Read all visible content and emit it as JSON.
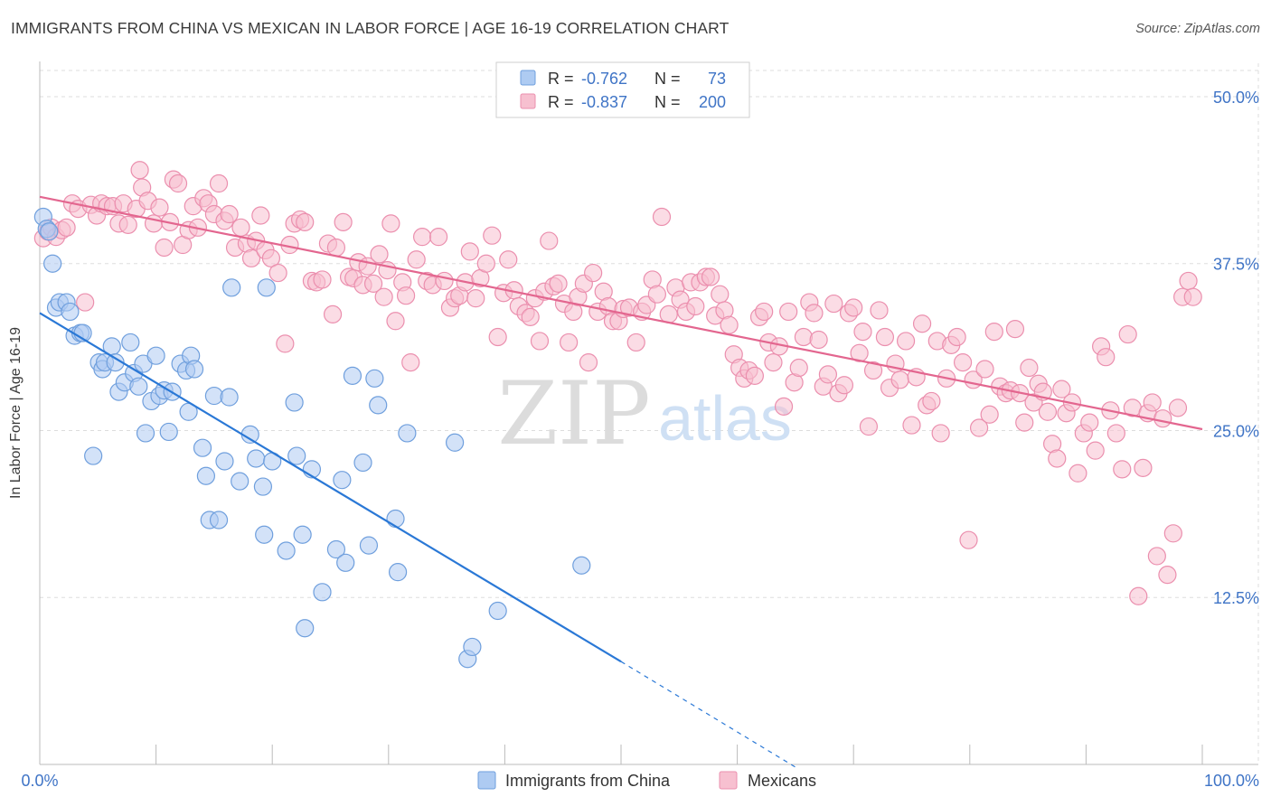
{
  "title": "IMMIGRANTS FROM CHINA VS MEXICAN IN LABOR FORCE | AGE 16-19 CORRELATION CHART",
  "source": "Source: ZipAtlas.com",
  "watermark": {
    "zip": "ZIP",
    "atlas": "atlas"
  },
  "colors": {
    "china_fill": "#aecbf2",
    "china_stroke": "#6f9fdd",
    "china_line": "#2a78d6",
    "mex_fill": "#f7c0d0",
    "mex_stroke": "#eb8fae",
    "mex_line": "#e3668f",
    "tick_text": "#3f74c6",
    "grid": "#dddddd"
  },
  "legend": {
    "r_label": "R =",
    "n_label": "N =",
    "rows": [
      {
        "r": "-0.762",
        "n": "73"
      },
      {
        "r": "-0.837",
        "n": "200"
      }
    ]
  },
  "chart_data": {
    "type": "scatter",
    "xlabel": "",
    "ylabel": "In Labor Force | Age 16-19",
    "xlim": [
      0,
      100
    ],
    "ylim": [
      0,
      52.5
    ],
    "x_tick_labels": [
      "0.0%",
      "100.0%"
    ],
    "y_ticks": [
      12.5,
      25.0,
      37.5,
      50.0
    ],
    "y_tick_labels": [
      "12.5%",
      "25.0%",
      "37.5%",
      "50.0%"
    ],
    "grid": true,
    "legend_position": "top-center",
    "series": [
      {
        "name": "Immigrants from China",
        "trend": {
          "x": [
            0,
            50
          ],
          "y": [
            33.8,
            7.7
          ],
          "dashed_to": [
            65,
            -0.2
          ]
        },
        "points": [
          [
            0.3,
            41.0
          ],
          [
            0.6,
            40.1
          ],
          [
            0.8,
            39.9
          ],
          [
            1.1,
            37.5
          ],
          [
            1.4,
            34.2
          ],
          [
            1.7,
            34.6
          ],
          [
            2.3,
            34.6
          ],
          [
            2.6,
            33.9
          ],
          [
            3.0,
            32.1
          ],
          [
            3.5,
            32.3
          ],
          [
            3.7,
            32.3
          ],
          [
            4.6,
            23.1
          ],
          [
            5.1,
            30.1
          ],
          [
            5.4,
            29.6
          ],
          [
            5.6,
            30.1
          ],
          [
            6.2,
            31.3
          ],
          [
            6.5,
            30.1
          ],
          [
            6.8,
            27.9
          ],
          [
            7.3,
            28.6
          ],
          [
            7.8,
            31.6
          ],
          [
            8.1,
            29.3
          ],
          [
            8.5,
            28.3
          ],
          [
            8.9,
            30.0
          ],
          [
            9.1,
            24.8
          ],
          [
            9.6,
            27.2
          ],
          [
            10.0,
            30.6
          ],
          [
            10.3,
            27.6
          ],
          [
            10.7,
            28.0
          ],
          [
            11.1,
            24.9
          ],
          [
            11.4,
            27.9
          ],
          [
            12.1,
            30.0
          ],
          [
            12.6,
            29.5
          ],
          [
            12.8,
            26.4
          ],
          [
            13.0,
            30.6
          ],
          [
            13.3,
            29.6
          ],
          [
            14.0,
            23.7
          ],
          [
            14.3,
            21.6
          ],
          [
            14.6,
            18.3
          ],
          [
            15.0,
            27.6
          ],
          [
            15.4,
            18.3
          ],
          [
            15.9,
            22.7
          ],
          [
            16.3,
            27.5
          ],
          [
            16.5,
            35.7
          ],
          [
            17.2,
            21.2
          ],
          [
            18.1,
            24.7
          ],
          [
            18.6,
            22.9
          ],
          [
            19.2,
            20.8
          ],
          [
            19.3,
            17.2
          ],
          [
            19.5,
            35.7
          ],
          [
            20.0,
            22.7
          ],
          [
            21.2,
            16.0
          ],
          [
            21.9,
            27.1
          ],
          [
            22.1,
            23.1
          ],
          [
            22.6,
            17.2
          ],
          [
            22.8,
            10.2
          ],
          [
            23.4,
            22.1
          ],
          [
            24.3,
            12.9
          ],
          [
            25.5,
            16.1
          ],
          [
            26.0,
            21.3
          ],
          [
            26.3,
            15.1
          ],
          [
            26.9,
            29.1
          ],
          [
            27.8,
            22.6
          ],
          [
            28.3,
            16.4
          ],
          [
            28.8,
            28.9
          ],
          [
            29.1,
            26.9
          ],
          [
            30.6,
            18.4
          ],
          [
            30.8,
            14.4
          ],
          [
            31.6,
            24.8
          ],
          [
            35.7,
            24.1
          ],
          [
            36.8,
            7.9
          ],
          [
            37.2,
            8.8
          ],
          [
            39.4,
            11.5
          ],
          [
            46.6,
            14.9
          ]
        ]
      },
      {
        "name": "Mexicans",
        "trend": {
          "x": [
            0,
            100
          ],
          "y": [
            42.5,
            25.1
          ]
        },
        "points": [
          [
            0.3,
            39.4
          ],
          [
            0.7,
            39.9
          ],
          [
            1.0,
            40.2
          ],
          [
            1.4,
            39.5
          ],
          [
            1.9,
            40.0
          ],
          [
            2.3,
            40.2
          ],
          [
            2.8,
            42.0
          ],
          [
            3.3,
            41.6
          ],
          [
            3.9,
            34.6
          ],
          [
            4.4,
            41.9
          ],
          [
            4.9,
            41.1
          ],
          [
            5.3,
            42.0
          ],
          [
            5.8,
            41.8
          ],
          [
            6.3,
            41.8
          ],
          [
            6.8,
            40.5
          ],
          [
            7.2,
            42.0
          ],
          [
            7.6,
            40.4
          ],
          [
            8.3,
            41.6
          ],
          [
            8.6,
            44.5
          ],
          [
            8.8,
            43.2
          ],
          [
            9.3,
            42.2
          ],
          [
            9.8,
            40.5
          ],
          [
            10.3,
            41.7
          ],
          [
            10.7,
            38.7
          ],
          [
            11.2,
            40.6
          ],
          [
            11.5,
            43.8
          ],
          [
            11.9,
            43.5
          ],
          [
            12.3,
            38.9
          ],
          [
            12.8,
            40.0
          ],
          [
            13.2,
            41.8
          ],
          [
            13.6,
            40.2
          ],
          [
            14.1,
            42.4
          ],
          [
            14.5,
            42.0
          ],
          [
            15.0,
            41.2
          ],
          [
            15.4,
            43.5
          ],
          [
            15.9,
            40.7
          ],
          [
            16.3,
            41.2
          ],
          [
            16.8,
            38.7
          ],
          [
            17.3,
            40.2
          ],
          [
            17.8,
            39.0
          ],
          [
            18.2,
            37.9
          ],
          [
            18.6,
            39.2
          ],
          [
            19.0,
            41.1
          ],
          [
            19.4,
            38.5
          ],
          [
            19.9,
            37.9
          ],
          [
            20.5,
            36.8
          ],
          [
            21.1,
            31.5
          ],
          [
            21.5,
            38.9
          ],
          [
            21.9,
            40.5
          ],
          [
            22.4,
            40.8
          ],
          [
            22.8,
            40.6
          ],
          [
            23.4,
            36.2
          ],
          [
            23.8,
            36.1
          ],
          [
            24.3,
            36.3
          ],
          [
            24.8,
            39.0
          ],
          [
            25.2,
            33.7
          ],
          [
            25.5,
            38.7
          ],
          [
            26.1,
            40.6
          ],
          [
            26.6,
            36.5
          ],
          [
            27.0,
            36.4
          ],
          [
            27.4,
            37.6
          ],
          [
            27.8,
            35.9
          ],
          [
            28.2,
            37.3
          ],
          [
            28.7,
            36.0
          ],
          [
            29.2,
            38.2
          ],
          [
            29.6,
            35.0
          ],
          [
            29.9,
            37.0
          ],
          [
            30.2,
            40.5
          ],
          [
            30.6,
            33.2
          ],
          [
            31.2,
            36.1
          ],
          [
            31.5,
            35.1
          ],
          [
            31.9,
            30.1
          ],
          [
            32.4,
            37.8
          ],
          [
            32.9,
            39.5
          ],
          [
            33.3,
            36.2
          ],
          [
            33.8,
            35.9
          ],
          [
            34.3,
            39.5
          ],
          [
            34.8,
            36.2
          ],
          [
            35.3,
            34.2
          ],
          [
            35.7,
            34.9
          ],
          [
            36.1,
            35.1
          ],
          [
            36.6,
            36.1
          ],
          [
            37.0,
            38.4
          ],
          [
            37.5,
            34.9
          ],
          [
            37.9,
            36.4
          ],
          [
            38.4,
            37.5
          ],
          [
            38.9,
            39.6
          ],
          [
            39.4,
            32.0
          ],
          [
            39.9,
            35.3
          ],
          [
            40.3,
            37.8
          ],
          [
            40.8,
            35.5
          ],
          [
            41.2,
            34.3
          ],
          [
            41.8,
            33.8
          ],
          [
            42.2,
            33.5
          ],
          [
            42.6,
            34.9
          ],
          [
            43.0,
            31.7
          ],
          [
            43.4,
            35.4
          ],
          [
            43.8,
            39.2
          ],
          [
            44.2,
            35.8
          ],
          [
            44.6,
            36.0
          ],
          [
            45.1,
            34.5
          ],
          [
            45.5,
            31.6
          ],
          [
            45.9,
            33.9
          ],
          [
            46.3,
            35.0
          ],
          [
            46.8,
            36.0
          ],
          [
            47.2,
            30.1
          ],
          [
            47.6,
            36.8
          ],
          [
            48.0,
            33.9
          ],
          [
            48.5,
            35.4
          ],
          [
            48.9,
            34.3
          ],
          [
            49.3,
            33.2
          ],
          [
            49.8,
            33.2
          ],
          [
            50.2,
            34.1
          ],
          [
            50.7,
            34.2
          ],
          [
            51.3,
            31.6
          ],
          [
            51.8,
            33.9
          ],
          [
            52.2,
            34.4
          ],
          [
            52.7,
            36.3
          ],
          [
            53.1,
            35.2
          ],
          [
            53.5,
            41.0
          ],
          [
            54.1,
            33.7
          ],
          [
            54.7,
            35.7
          ],
          [
            55.1,
            34.8
          ],
          [
            55.6,
            33.9
          ],
          [
            56.0,
            36.1
          ],
          [
            56.4,
            34.3
          ],
          [
            56.8,
            36.1
          ],
          [
            57.3,
            36.5
          ],
          [
            57.7,
            36.5
          ],
          [
            58.1,
            33.6
          ],
          [
            58.5,
            35.2
          ],
          [
            58.9,
            34.0
          ],
          [
            59.3,
            32.9
          ],
          [
            59.7,
            30.7
          ],
          [
            60.2,
            29.7
          ],
          [
            60.6,
            28.9
          ],
          [
            61.0,
            29.5
          ],
          [
            61.5,
            29.1
          ],
          [
            61.9,
            33.5
          ],
          [
            62.3,
            33.9
          ],
          [
            62.7,
            31.6
          ],
          [
            63.1,
            30.1
          ],
          [
            63.6,
            31.3
          ],
          [
            64.0,
            26.8
          ],
          [
            64.4,
            33.9
          ],
          [
            64.9,
            28.6
          ],
          [
            65.3,
            29.7
          ],
          [
            65.7,
            32.0
          ],
          [
            66.2,
            34.6
          ],
          [
            66.6,
            33.8
          ],
          [
            67.0,
            31.8
          ],
          [
            67.4,
            28.3
          ],
          [
            67.8,
            29.2
          ],
          [
            68.3,
            34.5
          ],
          [
            68.7,
            27.8
          ],
          [
            69.2,
            28.4
          ],
          [
            69.6,
            33.8
          ],
          [
            70.0,
            34.2
          ],
          [
            70.5,
            30.8
          ],
          [
            70.8,
            32.4
          ],
          [
            71.3,
            25.3
          ],
          [
            71.7,
            29.5
          ],
          [
            72.2,
            34.0
          ],
          [
            72.7,
            32.0
          ],
          [
            73.1,
            28.2
          ],
          [
            73.6,
            30.0
          ],
          [
            74.0,
            28.8
          ],
          [
            74.5,
            31.7
          ],
          [
            75.0,
            25.4
          ],
          [
            75.4,
            29.0
          ],
          [
            75.9,
            33.0
          ],
          [
            76.3,
            26.9
          ],
          [
            76.7,
            27.2
          ],
          [
            77.2,
            31.7
          ],
          [
            77.5,
            24.8
          ],
          [
            78.0,
            28.9
          ],
          [
            78.4,
            31.4
          ],
          [
            78.9,
            32.0
          ],
          [
            79.4,
            30.1
          ],
          [
            79.9,
            16.8
          ],
          [
            80.3,
            28.8
          ],
          [
            80.8,
            25.2
          ],
          [
            81.3,
            29.6
          ],
          [
            81.7,
            26.2
          ],
          [
            82.1,
            32.4
          ],
          [
            82.6,
            28.3
          ],
          [
            83.1,
            27.8
          ],
          [
            83.5,
            28.0
          ],
          [
            83.9,
            32.6
          ],
          [
            84.3,
            27.8
          ],
          [
            84.7,
            25.6
          ],
          [
            85.1,
            29.7
          ],
          [
            85.5,
            27.1
          ],
          [
            85.9,
            28.5
          ],
          [
            86.3,
            27.9
          ],
          [
            86.7,
            26.4
          ],
          [
            87.1,
            24.0
          ],
          [
            87.5,
            22.9
          ],
          [
            87.9,
            28.1
          ],
          [
            88.3,
            26.3
          ],
          [
            88.8,
            27.1
          ],
          [
            89.3,
            21.8
          ],
          [
            89.8,
            24.8
          ],
          [
            90.3,
            25.6
          ],
          [
            90.8,
            23.5
          ],
          [
            91.3,
            31.3
          ],
          [
            91.7,
            30.5
          ],
          [
            92.1,
            26.5
          ],
          [
            92.6,
            24.8
          ],
          [
            93.1,
            22.1
          ],
          [
            93.6,
            32.2
          ],
          [
            94.0,
            26.7
          ],
          [
            94.5,
            12.6
          ],
          [
            94.9,
            22.2
          ],
          [
            95.3,
            26.3
          ],
          [
            95.7,
            27.1
          ],
          [
            96.1,
            15.6
          ],
          [
            96.6,
            25.9
          ],
          [
            97.0,
            14.2
          ],
          [
            97.5,
            17.3
          ],
          [
            97.9,
            26.7
          ],
          [
            98.3,
            35.0
          ],
          [
            98.8,
            36.2
          ],
          [
            99.2,
            35.0
          ]
        ]
      }
    ]
  }
}
